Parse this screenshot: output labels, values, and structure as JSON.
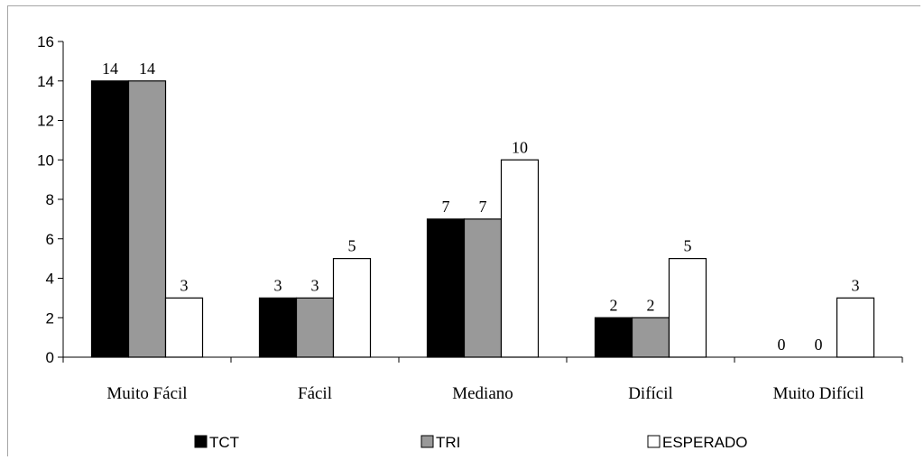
{
  "chart_data": {
    "type": "bar",
    "categories": [
      "Muito Fácil",
      "Fácil",
      "Mediano",
      "Difícil",
      "Muito Difícil"
    ],
    "series": [
      {
        "name": "TCT",
        "values": [
          14,
          3,
          7,
          2,
          0
        ],
        "color": "#000000"
      },
      {
        "name": "TRI",
        "values": [
          14,
          3,
          7,
          2,
          0
        ],
        "color": "#999999"
      },
      {
        "name": "ESPERADO",
        "values": [
          3,
          5,
          10,
          5,
          3
        ],
        "color": "#ffffff"
      }
    ],
    "yticks": [
      "0",
      "2",
      "4",
      "6",
      "8",
      "10",
      "12",
      "14",
      "16"
    ],
    "ylim": [
      0,
      16
    ],
    "grid": false,
    "legend_position": "bottom",
    "title": "",
    "xlabel": "",
    "ylabel": ""
  }
}
